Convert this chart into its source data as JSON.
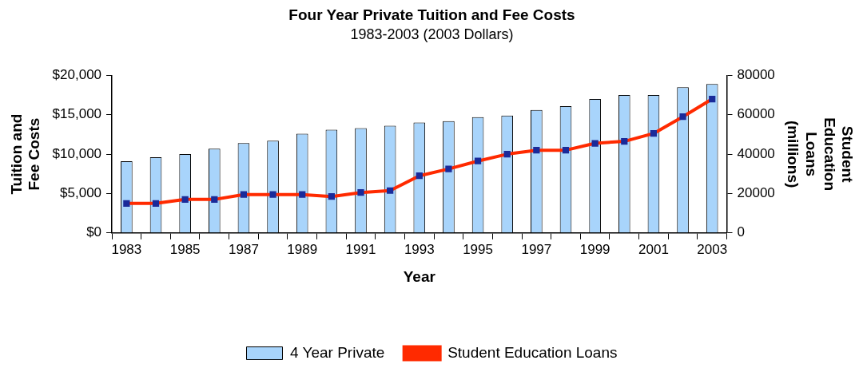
{
  "chart_data": {
    "type": "bar",
    "title": "Four Year Private Tuition and Fee Costs",
    "subtitle": "1983-2003 (2003 Dollars)",
    "xlabel": "Year",
    "ylabel": "Tuition and Fee Costs",
    "y2label": "Student Education Loans (millions)",
    "categories": [
      "1983",
      null,
      "1985",
      null,
      "1987",
      null,
      "1989",
      null,
      "1991",
      null,
      "1993",
      null,
      "1995",
      null,
      "1997",
      null,
      "1999",
      null,
      "2001",
      null,
      "2003"
    ],
    "series": [
      {
        "name": "4 Year Private",
        "color": "#a8d4fb",
        "values": [
          9100,
          9600,
          10000,
          10700,
          11400,
          11700,
          12600,
          13100,
          13300,
          13600,
          14000,
          14200,
          14700,
          14900,
          15600,
          16100,
          17000,
          17500,
          17500,
          18500,
          18900
        ]
      },
      {
        "name": "Student Education Loans",
        "type": "line",
        "axis": "y2",
        "color": "#ff2a00",
        "values": [
          15000,
          15000,
          17000,
          17000,
          19500,
          19500,
          19500,
          18500,
          20500,
          21500,
          29000,
          32500,
          36500,
          40000,
          42000,
          42000,
          45500,
          46500,
          50500,
          59000,
          68000
        ]
      }
    ],
    "ylim": [
      0,
      20000
    ],
    "yticks": [
      {
        "value": 0,
        "label": "$0"
      },
      {
        "value": 5000,
        "label": "$5,000"
      },
      {
        "value": 10000,
        "label": "$10,000"
      },
      {
        "value": 15000,
        "label": "$15,000"
      },
      {
        "value": 20000,
        "label": "$20,000"
      }
    ],
    "y2lim": [
      0,
      80000
    ],
    "y2ticks": [
      0,
      20000,
      40000,
      60000,
      80000
    ],
    "grid": false,
    "legend": "bottom",
    "marker": "square",
    "line_style": "solid"
  }
}
